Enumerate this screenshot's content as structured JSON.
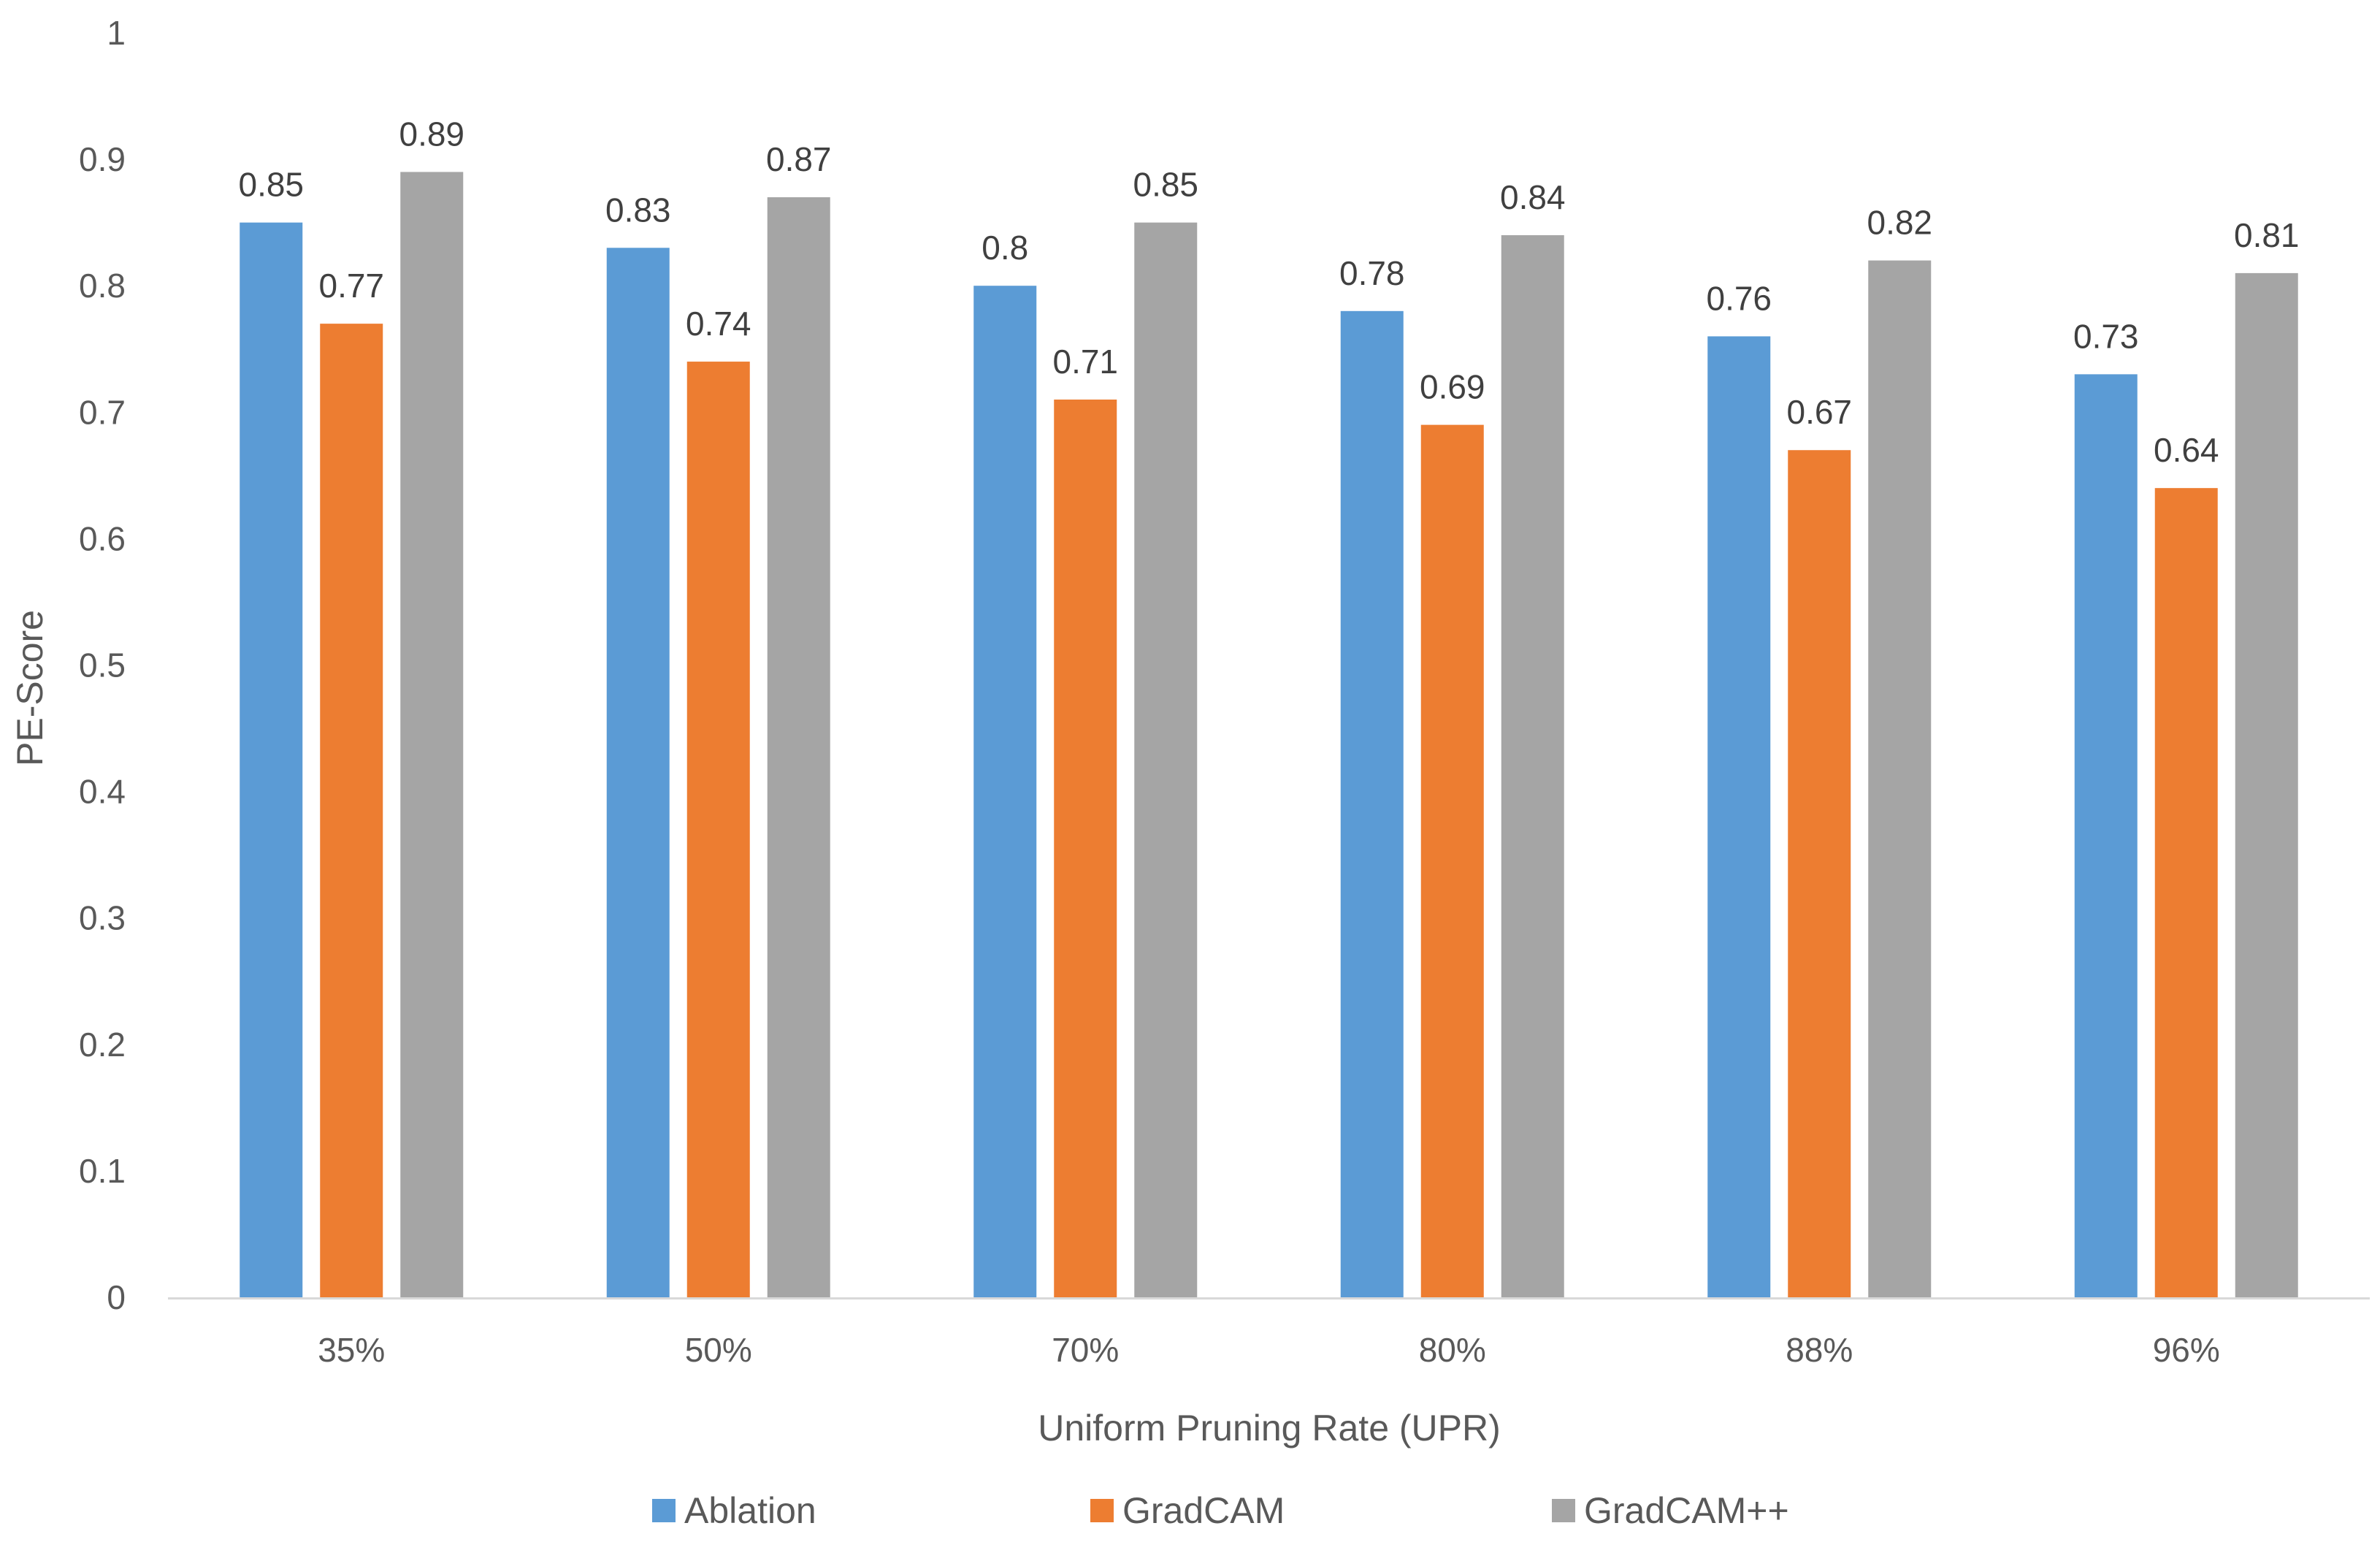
{
  "chart_data": {
    "type": "bar",
    "title": "",
    "xlabel": "Uniform Pruning Rate (UPR)",
    "ylabel": "PE-Score",
    "ylim": [
      0,
      1
    ],
    "yticks": [
      "0",
      "0.1",
      "0.2",
      "0.3",
      "0.4",
      "0.5",
      "0.6",
      "0.7",
      "0.8",
      "0.9",
      "1"
    ],
    "categories": [
      "35%",
      "50%",
      "70%",
      "80%",
      "88%",
      "96%"
    ],
    "series": [
      {
        "name": "Ablation",
        "color": "#5B9BD5",
        "values": [
          0.85,
          0.83,
          0.8,
          0.78,
          0.76,
          0.73
        ]
      },
      {
        "name": "GradCAM",
        "color": "#ED7D31",
        "values": [
          0.77,
          0.74,
          0.71,
          0.69,
          0.67,
          0.64
        ]
      },
      {
        "name": "GradCAM++",
        "color": "#A5A5A5",
        "values": [
          0.89,
          0.87,
          0.85,
          0.84,
          0.82,
          0.81
        ]
      }
    ],
    "data_labels": [
      [
        "0.85",
        "0.83",
        "0.8",
        "0.78",
        "0.76",
        "0.73"
      ],
      [
        "0.77",
        "0.74",
        "0.71",
        "0.69",
        "0.67",
        "0.64"
      ],
      [
        "0.89",
        "0.87",
        "0.85",
        "0.84",
        "0.82",
        "0.81"
      ]
    ],
    "grid": false,
    "legend": "bottom"
  }
}
